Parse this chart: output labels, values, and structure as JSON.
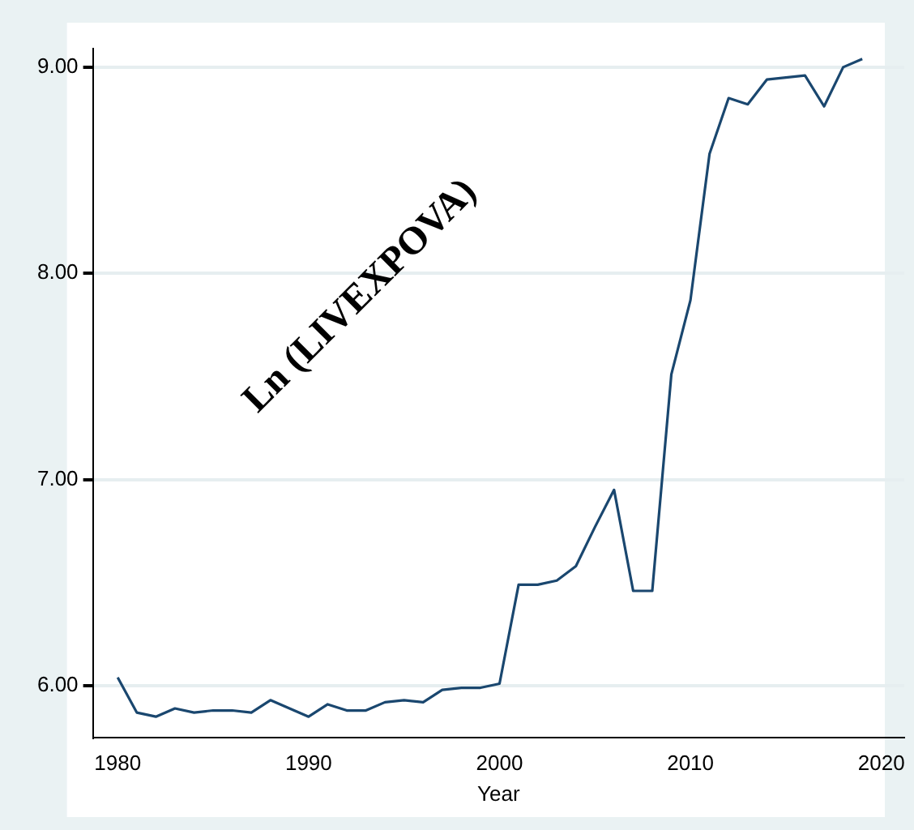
{
  "chart_data": {
    "type": "line",
    "xlabel": "Year",
    "annotations": [
      "Ln (LIVEXPOVA)"
    ],
    "x": [
      1980,
      1981,
      1982,
      1983,
      1984,
      1985,
      1986,
      1987,
      1988,
      1989,
      1990,
      1991,
      1992,
      1993,
      1994,
      1995,
      1996,
      1997,
      1998,
      1999,
      2000,
      2001,
      2002,
      2003,
      2004,
      2005,
      2006,
      2007,
      2008,
      2009,
      2010,
      2011,
      2012,
      2013,
      2014,
      2015,
      2016,
      2017,
      2018,
      2019
    ],
    "series": [
      {
        "color": "#1a476f",
        "values": [
          6.04,
          5.87,
          5.85,
          5.89,
          5.87,
          5.88,
          5.88,
          5.87,
          5.93,
          5.89,
          5.85,
          5.91,
          5.88,
          5.88,
          5.92,
          5.93,
          5.92,
          5.98,
          5.99,
          5.99,
          6.01,
          6.49,
          6.49,
          6.51,
          6.58,
          6.77,
          6.95,
          6.46,
          6.46,
          7.51,
          7.87,
          8.58,
          8.85,
          8.82,
          8.94,
          8.95,
          8.96,
          8.81,
          9.0,
          9.04
        ]
      }
    ],
    "xlim": [
      1978.7,
      2021.2
    ],
    "xticks": [
      1980,
      1990,
      2000,
      2010,
      2020
    ],
    "ylim": [
      5.75,
      9.09
    ],
    "yticks": [
      {
        "value": 6,
        "label": "6.00"
      },
      {
        "value": 7,
        "label": "7.00"
      },
      {
        "value": 8,
        "label": "8.00"
      },
      {
        "value": 9,
        "label": "9.00"
      }
    ],
    "grid": "y",
    "legend": false,
    "marker": "none",
    "line_style": "solid"
  }
}
